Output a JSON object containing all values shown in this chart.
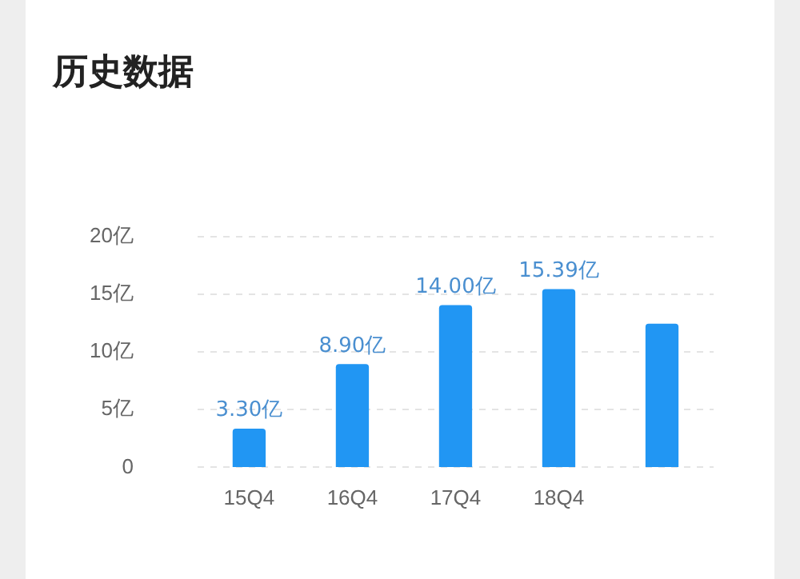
{
  "chart_data": {
    "type": "bar",
    "title": "历史数据",
    "categories": [
      "15Q4",
      "16Q4",
      "17Q4",
      "18Q4",
      null
    ],
    "values": [
      3.3,
      8.9,
      14.0,
      15.39,
      12.4
    ],
    "value_labels": [
      "3.30亿",
      "8.90亿",
      "14.00亿",
      "15.39亿",
      null
    ],
    "color": "#2196f3",
    "ylim": [
      0,
      20
    ],
    "yticks": [
      {
        "value": 0,
        "label": "0"
      },
      {
        "value": 5,
        "label": "5亿"
      },
      {
        "value": 10,
        "label": "10亿"
      },
      {
        "value": 15,
        "label": "15亿"
      },
      {
        "value": 20,
        "label": "20亿"
      }
    ],
    "grid": "y"
  }
}
